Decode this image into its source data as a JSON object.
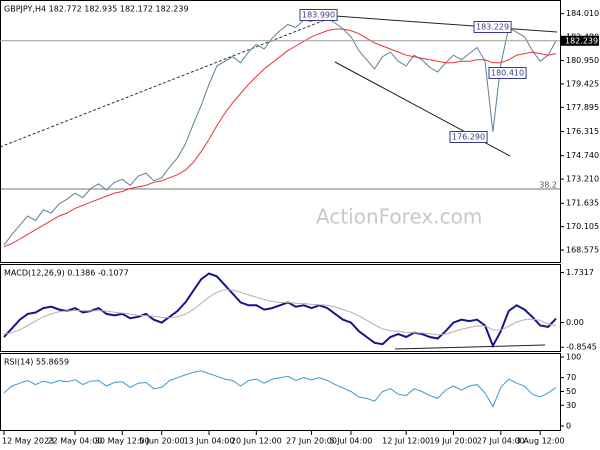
{
  "chart_data": [
    {
      "type": "line",
      "title": "GBPJPY,H4 182.772 182.935 182.172 182.239",
      "watermark": "ActionForex.com",
      "last": 182.239,
      "annotations": [
        "183.990",
        "183.229",
        "180.410",
        "176.290",
        "38.2"
      ],
      "ylim": [
        167.8,
        184.9
      ],
      "yticks": [
        {
          "value": 184.01,
          "label": "184.010"
        },
        {
          "value": 182.48,
          "label": "182.480"
        },
        {
          "value": 180.95,
          "label": "180.950"
        },
        179.425,
        177.895,
        176.315,
        {
          "value": 174.74,
          "label": "174.740"
        },
        {
          "value": 173.21,
          "label": "173.210"
        },
        171.635,
        170.105,
        168.575
      ],
      "series": [
        {
          "name": "GBPJPY",
          "color": "#5b8196",
          "values": [
            168.9,
            169.6,
            170.2,
            170.8,
            170.5,
            171.2,
            171.0,
            171.6,
            171.9,
            172.3,
            172.0,
            172.6,
            172.9,
            172.5,
            173.0,
            173.2,
            172.8,
            173.4,
            173.6,
            173.1,
            173.3,
            174.0,
            174.6,
            175.5,
            176.8,
            178.0,
            179.4,
            180.6,
            180.9,
            181.2,
            180.8,
            181.5,
            182.0,
            181.7,
            182.4,
            182.9,
            183.3,
            183.1,
            183.6,
            183.5,
            183.9,
            183.7,
            183.4,
            183.0,
            182.5,
            181.6,
            181.0,
            180.4,
            181.2,
            181.5,
            180.9,
            180.6,
            181.3,
            181.0,
            180.5,
            180.2,
            180.8,
            181.3,
            181.0,
            181.4,
            181.8,
            180.9,
            176.3,
            180.7,
            183.1,
            182.8,
            182.5,
            181.6,
            180.9,
            181.3,
            182.24
          ]
        },
        {
          "name": "MA",
          "color": "#e8333a",
          "values": [
            168.8,
            169.0,
            169.3,
            169.6,
            169.9,
            170.2,
            170.5,
            170.8,
            171.0,
            171.3,
            171.5,
            171.7,
            171.9,
            172.1,
            172.3,
            172.4,
            172.6,
            172.7,
            172.8,
            173.0,
            173.1,
            173.3,
            173.5,
            173.8,
            174.3,
            175.0,
            175.8,
            176.7,
            177.5,
            178.2,
            178.8,
            179.4,
            179.9,
            180.4,
            180.8,
            181.2,
            181.6,
            181.9,
            182.2,
            182.5,
            182.7,
            182.9,
            183.0,
            183.0,
            182.9,
            182.7,
            182.4,
            182.1,
            181.9,
            181.7,
            181.5,
            181.3,
            181.2,
            181.1,
            181.0,
            180.9,
            180.8,
            180.8,
            180.9,
            180.9,
            181.0,
            181.0,
            180.8,
            180.8,
            181.0,
            181.3,
            181.4,
            181.5,
            181.4,
            181.3,
            181.4
          ]
        }
      ]
    },
    {
      "type": "line",
      "title": "MACD(12,26,9) 0.1386 -0.1077",
      "ylim": [
        -0.95,
        1.96
      ],
      "yticks": [
        1.7317,
        {
          "value": 0,
          "label": "0.00"
        },
        -0.8545
      ],
      "series": [
        {
          "name": "MACD",
          "color": "#16168a",
          "values": [
            -0.5,
            -0.2,
            0.1,
            0.3,
            0.35,
            0.5,
            0.55,
            0.45,
            0.4,
            0.5,
            0.35,
            0.4,
            0.5,
            0.3,
            0.25,
            0.3,
            0.15,
            0.2,
            0.3,
            0.1,
            0.0,
            0.2,
            0.4,
            0.7,
            1.1,
            1.5,
            1.7,
            1.6,
            1.3,
            1.0,
            0.7,
            0.6,
            0.6,
            0.45,
            0.5,
            0.6,
            0.7,
            0.55,
            0.6,
            0.5,
            0.6,
            0.5,
            0.3,
            0.1,
            0.0,
            -0.3,
            -0.5,
            -0.7,
            -0.75,
            -0.5,
            -0.4,
            -0.5,
            -0.35,
            -0.4,
            -0.5,
            -0.55,
            -0.3,
            0.0,
            0.1,
            0.05,
            0.1,
            -0.1,
            -0.8,
            -0.3,
            0.4,
            0.6,
            0.45,
            0.2,
            -0.1,
            -0.15,
            0.1386
          ]
        },
        {
          "name": "Signal",
          "color": "#c0a8b0",
          "values": [
            -0.4,
            -0.35,
            -0.25,
            -0.1,
            0.05,
            0.2,
            0.3,
            0.38,
            0.4,
            0.42,
            0.42,
            0.4,
            0.42,
            0.4,
            0.36,
            0.33,
            0.29,
            0.25,
            0.24,
            0.22,
            0.18,
            0.17,
            0.2,
            0.29,
            0.45,
            0.66,
            0.88,
            1.05,
            1.14,
            1.13,
            1.05,
            0.96,
            0.88,
            0.8,
            0.73,
            0.7,
            0.7,
            0.67,
            0.66,
            0.63,
            0.62,
            0.6,
            0.54,
            0.45,
            0.36,
            0.23,
            0.08,
            -0.08,
            -0.22,
            -0.28,
            -0.3,
            -0.34,
            -0.35,
            -0.36,
            -0.39,
            -0.42,
            -0.4,
            -0.32,
            -0.23,
            -0.17,
            -0.12,
            -0.12,
            -0.25,
            -0.26,
            -0.13,
            0.02,
            0.1,
            0.12,
            0.08,
            -0.05,
            -0.1077
          ]
        }
      ]
    },
    {
      "type": "line",
      "title": "RSI(14) 55.8659",
      "ylim": [
        0,
        100
      ],
      "yticks": [
        100,
        70,
        50,
        30,
        0
      ],
      "categories": [
        "12 May 2023",
        null,
        null,
        null,
        null,
        null,
        null,
        null,
        null,
        "22 May 04:00",
        null,
        null,
        null,
        null,
        null,
        "30 May 12:00",
        null,
        null,
        null,
        null,
        "5 Jun 20:00",
        null,
        null,
        null,
        null,
        null,
        "13 Jun 04:00",
        null,
        null,
        null,
        null,
        null,
        "20 Jun 12:00",
        null,
        null,
        null,
        null,
        null,
        null,
        "27 Jun 20:00",
        null,
        null,
        null,
        null,
        "5 Jul 04:00",
        null,
        null,
        null,
        null,
        null,
        null,
        "12 Jul 12:00",
        null,
        null,
        null,
        null,
        null,
        "19 Jul 20:00",
        null,
        null,
        null,
        null,
        null,
        "27 Jul 04:00",
        null,
        null,
        null,
        null,
        "3 Aug 12:00",
        null,
        null
      ],
      "series": [
        {
          "name": "RSI",
          "color": "#3a9ad9",
          "values": [
            48,
            58,
            62,
            66,
            60,
            65,
            62,
            66,
            64,
            67,
            60,
            65,
            66,
            58,
            63,
            64,
            56,
            62,
            63,
            54,
            56,
            66,
            70,
            74,
            78,
            80,
            76,
            72,
            68,
            66,
            58,
            66,
            68,
            62,
            68,
            70,
            72,
            66,
            70,
            67,
            70,
            66,
            60,
            55,
            50,
            42,
            40,
            36,
            50,
            54,
            46,
            44,
            54,
            50,
            44,
            40,
            52,
            58,
            52,
            58,
            60,
            48,
            28,
            56,
            68,
            62,
            58,
            46,
            42,
            48,
            55.8659
          ]
        }
      ]
    }
  ]
}
